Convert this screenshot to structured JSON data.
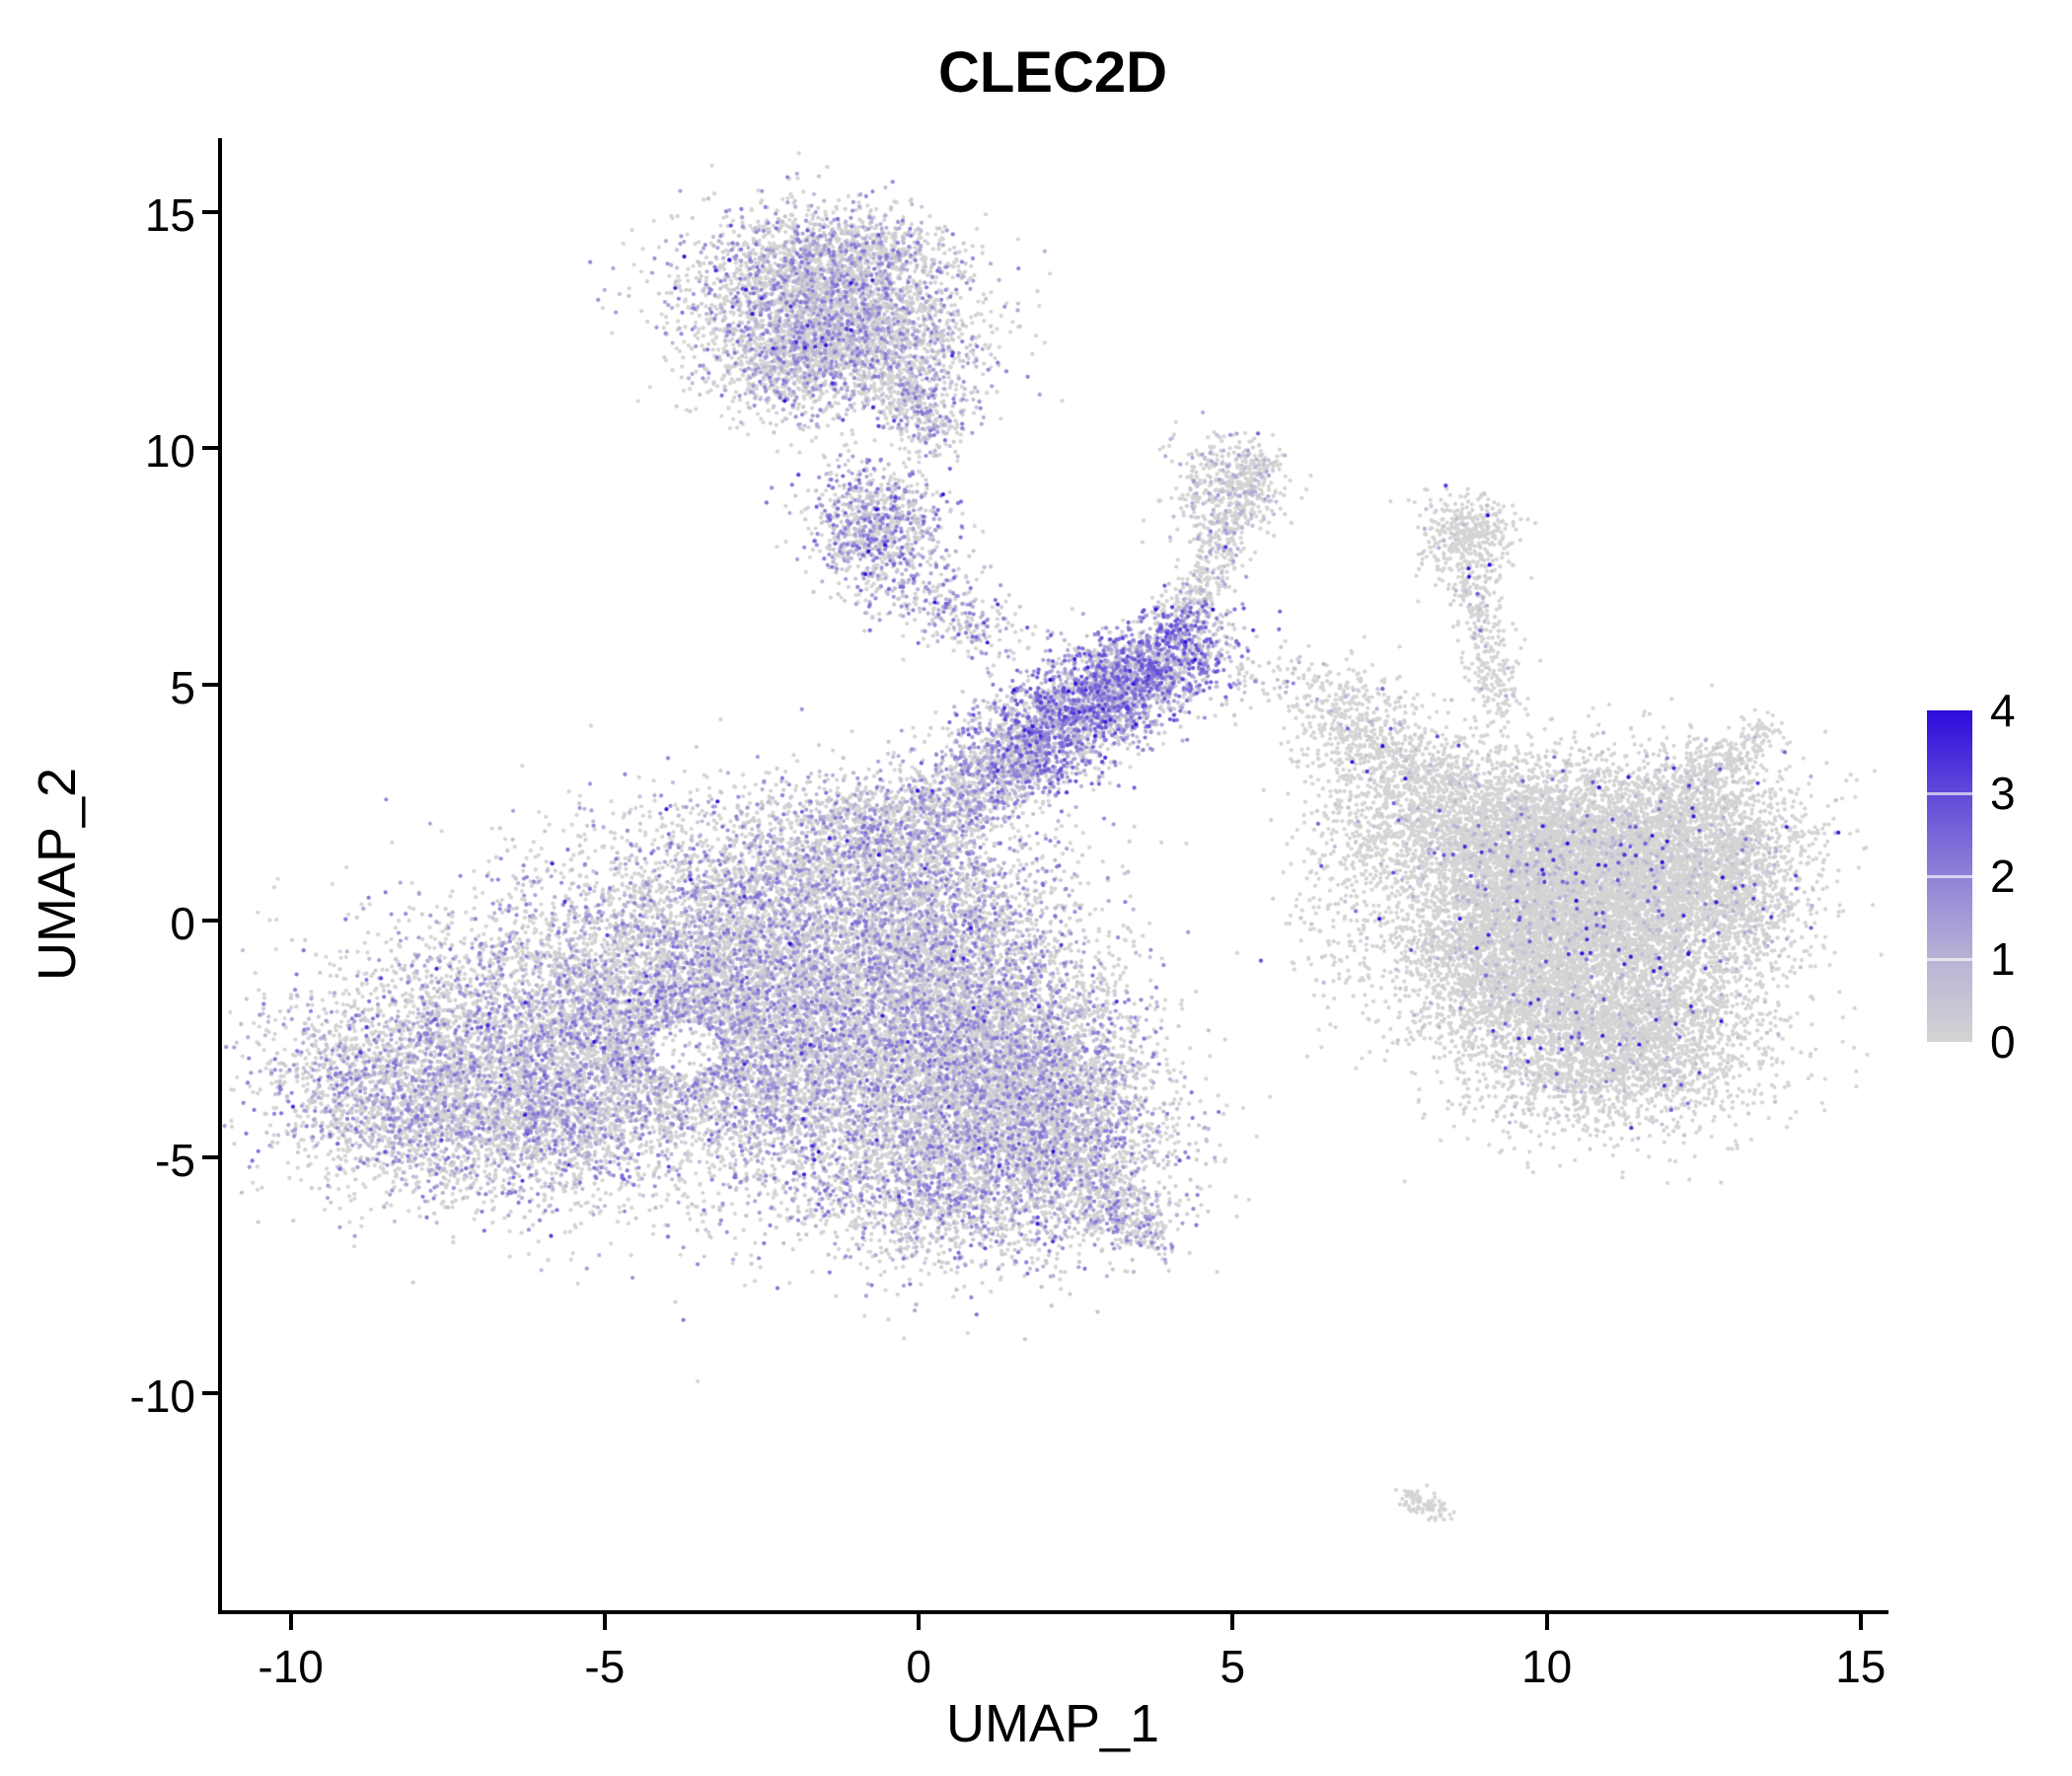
{
  "title": "CLEC2D",
  "chart_data": {
    "type": "scatter",
    "title": "CLEC2D",
    "xlabel": "UMAP_1",
    "ylabel": "UMAP_2",
    "xlim": [
      -11.11,
      15.38
    ],
    "ylim": [
      -14.59,
      16.56
    ],
    "xticks": [
      -10,
      -5,
      0,
      5,
      10,
      15
    ],
    "yticks": [
      -10,
      -5,
      0,
      5,
      10,
      15
    ],
    "grid": false,
    "point_radius_px": 2.1,
    "seed": 42,
    "colors": {
      "low": "#D4D4D4",
      "high": "#2C0BDB",
      "gamma": 1.3
    },
    "legend": {
      "title": "",
      "breaks": [
        0,
        1,
        2,
        3,
        4
      ],
      "position": "right"
    },
    "clusters": [
      {
        "name": "left-main",
        "expr": {
          "p0": 0.42,
          "vmax": 2.4,
          "pow": 1.7,
          "ph": 0.004,
          "vh": 2.6
        },
        "holes": [
          {
            "x": -3.7,
            "y": -2.7,
            "r": 0.55,
            "keep": 0.12
          }
        ],
        "blobs": [
          {
            "t": "g",
            "x": -5.8,
            "y": -2.8,
            "sx": 1.9,
            "sy": 1.5,
            "n": 4500
          },
          {
            "t": "g",
            "x": -3.0,
            "y": -1.5,
            "sx": 1.9,
            "sy": 1.5,
            "n": 5000
          },
          {
            "t": "g",
            "x": -0.8,
            "y": -3.2,
            "sx": 1.6,
            "sy": 1.6,
            "n": 3800
          },
          {
            "t": "g",
            "x": -6.8,
            "y": -4.2,
            "sx": 1.4,
            "sy": 0.9,
            "n": 1400
          },
          {
            "t": "g",
            "x": -1.6,
            "y": 0.9,
            "sx": 1.7,
            "sy": 1.0,
            "n": 2000
          },
          {
            "t": "g",
            "x": 1.2,
            "y": -4.6,
            "sx": 1.2,
            "sy": 1.2,
            "n": 1700
          },
          {
            "t": "g",
            "x": 2.6,
            "y": -5.4,
            "sx": 0.9,
            "sy": 0.8,
            "n": 700
          },
          {
            "t": "l",
            "x1": 2.9,
            "y1": -6.0,
            "x2": 3.8,
            "y2": -6.8,
            "s": 0.25,
            "n": 220
          },
          {
            "t": "g",
            "x": -8.6,
            "y": -3.5,
            "sx": 0.9,
            "sy": 1.0,
            "n": 900
          },
          {
            "t": "g",
            "x": 0.3,
            "y": -0.5,
            "sx": 1.0,
            "sy": 1.2,
            "n": 1600
          },
          {
            "t": "g",
            "x": 1.5,
            "y": -2.5,
            "sx": 1.1,
            "sy": 1.3,
            "n": 2000
          },
          {
            "t": "g",
            "x": 2.3,
            "y": -3.8,
            "sx": 0.8,
            "sy": 0.9,
            "n": 800
          },
          {
            "t": "g",
            "x": 0.2,
            "y": -5.8,
            "sx": 1.0,
            "sy": 0.8,
            "n": 700
          },
          {
            "t": "g",
            "x": -0.6,
            "y": 2.0,
            "sx": 0.8,
            "sy": 0.6,
            "n": 650
          }
        ]
      },
      {
        "name": "bridge",
        "expr": {
          "p0": 0.3,
          "vmax": 2.4,
          "pow": 1.6,
          "ph": 0.005,
          "vh": 2.6
        },
        "blobs": [
          {
            "t": "l",
            "x1": 0.2,
            "y1": 2.3,
            "x2": 2.0,
            "y2": 3.8,
            "s": 0.45,
            "n": 800
          }
        ]
      },
      {
        "name": "mid-purple",
        "expr": {
          "p0": 0.15,
          "vmax": 3.0,
          "pow": 1.3,
          "ph": 0.02,
          "vh": 2.8
        },
        "blobs": [
          {
            "t": "g",
            "x": 3.5,
            "y": 5.2,
            "sx": 0.75,
            "sy": 0.5,
            "rot": 28,
            "n": 1400
          },
          {
            "t": "g",
            "x": 2.6,
            "y": 4.4,
            "sx": 0.6,
            "sy": 0.5,
            "n": 800
          },
          {
            "t": "g",
            "x": 1.7,
            "y": 3.6,
            "sx": 0.55,
            "sy": 0.6,
            "n": 600
          },
          {
            "t": "l",
            "x1": 3.9,
            "y1": 5.9,
            "x2": 4.4,
            "y2": 6.5,
            "s": 0.3,
            "n": 180
          }
        ]
      },
      {
        "name": "upper-streak",
        "expr": {
          "p0": 0.55,
          "vmax": 1.6,
          "pow": 2.0,
          "ph": 0.004,
          "vh": 2.2
        },
        "blobs": [
          {
            "t": "l",
            "x1": 4.3,
            "y1": 6.4,
            "x2": 5.0,
            "y2": 8.6,
            "s": 0.22,
            "n": 300
          },
          {
            "t": "g",
            "x": 4.9,
            "y": 9.2,
            "sx": 0.45,
            "sy": 0.55,
            "n": 400
          },
          {
            "t": "l",
            "x1": 5.1,
            "y1": 9.0,
            "x2": 5.5,
            "y2": 9.9,
            "s": 0.2,
            "n": 110
          }
        ]
      },
      {
        "name": "top-main",
        "expr": {
          "p0": 0.42,
          "vmax": 2.4,
          "pow": 1.8,
          "ph": 0.008,
          "vh": 2.8
        },
        "blobs": [
          {
            "t": "g",
            "x": -1.7,
            "y": 13.3,
            "sx": 1.05,
            "sy": 0.85,
            "n": 2200
          },
          {
            "t": "g",
            "x": -0.6,
            "y": 12.2,
            "sx": 0.85,
            "sy": 0.8,
            "n": 1300
          },
          {
            "t": "g",
            "x": -2.1,
            "y": 11.8,
            "sx": 0.7,
            "sy": 0.6,
            "n": 700
          },
          {
            "t": "g",
            "x": -1.0,
            "y": 14.2,
            "sx": 0.8,
            "sy": 0.4,
            "n": 450
          },
          {
            "t": "l",
            "x1": -0.2,
            "y1": 11.3,
            "x2": 0.3,
            "y2": 10.2,
            "s": 0.3,
            "n": 260
          }
        ]
      },
      {
        "name": "top-small",
        "expr": {
          "p0": 0.3,
          "vmax": 2.6,
          "pow": 1.5,
          "ph": 0.01,
          "vh": 2.8
        },
        "blobs": [
          {
            "t": "g",
            "x": -0.7,
            "y": 8.4,
            "sx": 0.55,
            "sy": 0.65,
            "n": 800
          },
          {
            "t": "g",
            "x": -0.2,
            "y": 7.2,
            "sx": 0.5,
            "sy": 0.6,
            "n": 140
          },
          {
            "t": "l",
            "x1": 0.2,
            "y1": 6.8,
            "x2": 1.3,
            "y2": 5.9,
            "s": 0.35,
            "n": 200
          }
        ]
      },
      {
        "name": "right-main",
        "expr": {
          "p0": 0.87,
          "vmax": 1.2,
          "pow": 2.2,
          "ph": 0.012,
          "vh": 2.2
        },
        "blobs": [
          {
            "t": "g",
            "x": 10.8,
            "y": 0.4,
            "sx": 1.25,
            "sy": 1.15,
            "n": 4600
          },
          {
            "t": "g",
            "x": 9.8,
            "y": 1.6,
            "sx": 1.0,
            "sy": 0.9,
            "n": 2300
          },
          {
            "t": "g",
            "x": 11.0,
            "y": -2.4,
            "sx": 1.25,
            "sy": 1.0,
            "n": 3400
          },
          {
            "t": "g",
            "x": 12.3,
            "y": 1.6,
            "sx": 0.95,
            "sy": 1.0,
            "n": 2000
          },
          {
            "t": "g",
            "x": 8.2,
            "y": 2.4,
            "sx": 0.85,
            "sy": 0.8,
            "n": 1150
          },
          {
            "t": "g",
            "x": 7.1,
            "y": 3.9,
            "sx": 0.5,
            "sy": 0.6,
            "n": 380
          },
          {
            "t": "g",
            "x": 9.2,
            "y": -0.8,
            "sx": 0.9,
            "sy": 0.9,
            "n": 1600
          },
          {
            "t": "l",
            "x1": 9.3,
            "y1": 4.4,
            "x2": 8.75,
            "y2": 7.4,
            "s": 0.22,
            "n": 280
          },
          {
            "t": "g",
            "x": 8.75,
            "y": 8.15,
            "sx": 0.38,
            "sy": 0.5,
            "n": 400
          },
          {
            "t": "l",
            "x1": 12.9,
            "y1": 3.2,
            "x2": 13.5,
            "y2": 4.1,
            "s": 0.18,
            "n": 110
          },
          {
            "t": "l",
            "x1": 12.2,
            "y1": 2.8,
            "x2": 12.8,
            "y2": 3.6,
            "s": 0.2,
            "n": 110
          },
          {
            "t": "g",
            "x": 13.0,
            "y": 0.3,
            "sx": 0.5,
            "sy": 0.8,
            "n": 450
          },
          {
            "t": "g",
            "x": 6.9,
            "y": 0.6,
            "sx": 0.6,
            "sy": 1.2,
            "n": 230
          },
          {
            "t": "g",
            "x": 6.5,
            "y": 4.8,
            "sx": 0.4,
            "sy": 0.5,
            "n": 90
          }
        ]
      },
      {
        "name": "connector-sparse",
        "expr": {
          "p0": 0.5,
          "vmax": 2.0,
          "pow": 1.6,
          "ph": 0,
          "vh": 0
        },
        "blobs": [
          {
            "t": "l",
            "x1": 5.4,
            "y1": 5.3,
            "x2": 6.4,
            "y2": 4.9,
            "s": 0.35,
            "n": 60
          }
        ]
      },
      {
        "name": "tiny-bottom",
        "expr": {
          "p0": 0.95,
          "vmax": 0.6,
          "pow": 2.0,
          "ph": 0,
          "vh": 0
        },
        "blobs": [
          {
            "t": "l",
            "x1": 7.75,
            "y1": -12.2,
            "x2": 8.35,
            "y2": -12.5,
            "s": 0.12,
            "n": 90
          }
        ]
      }
    ]
  }
}
